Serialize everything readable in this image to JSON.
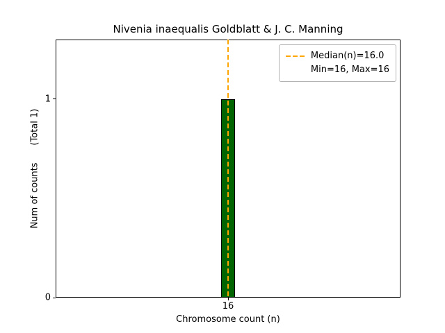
{
  "figure": {
    "background": "#ffffff",
    "title": "Nivenia inaequalis Goldblatt & J. C. Manning"
  },
  "axes": {
    "xlabel": "Chromosome count (n)",
    "ylabel": "Num of counts      (Total 1)",
    "x_ticks": [
      "16"
    ],
    "y_ticks": [
      "0",
      "1"
    ]
  },
  "legend": {
    "entries": [
      {
        "label": "Median(n)=16.0",
        "marker": "dashed-line",
        "color": "#ffa500"
      },
      {
        "label": "Min=16, Max=16",
        "marker": "none"
      }
    ],
    "position": "upper right"
  },
  "chart_data": {
    "type": "bar",
    "title": "Nivenia inaequalis Goldblatt & J. C. Manning",
    "xlabel": "Chromosome count (n)",
    "ylabel": "Num of counts (Total 1)",
    "x": [
      16
    ],
    "values": [
      1
    ],
    "total_counts": 1,
    "bar_color": "#006400",
    "bar_edge_color": "#000000",
    "bar_width": 0.08,
    "xlim": [
      15,
      17
    ],
    "ylim": [
      0,
      1.3
    ],
    "x_tick_values": [
      16
    ],
    "y_tick_values": [
      0,
      1
    ],
    "median_line": {
      "x": 16,
      "color": "#ffa500",
      "style": "dashed",
      "label": "Median(n)=16.0"
    },
    "annotations": {
      "min": 16,
      "max": 16,
      "median": 16.0
    },
    "legend_position": "upper right",
    "grid": false
  }
}
